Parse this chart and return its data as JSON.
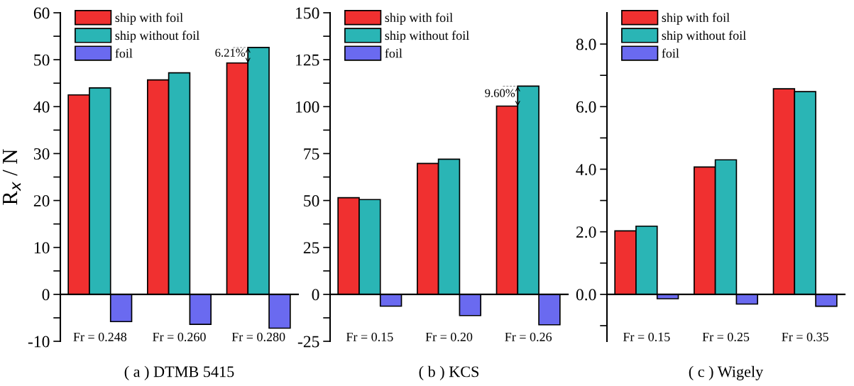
{
  "chart_data": [
    {
      "type": "bar",
      "xlabel": "( a ) DTMB 5415",
      "ylabel": "R$_{x}$ / N",
      "categories": [
        "Fr = 0.248",
        "Fr = 0.260",
        "Fr = 0.280"
      ],
      "series": [
        {
          "name": "ship with foil",
          "color": "#f03030",
          "values": [
            42.5,
            45.7,
            49.3
          ]
        },
        {
          "name": "ship without foil",
          "color": "#2ab5b5",
          "values": [
            44.0,
            47.2,
            52.6
          ]
        },
        {
          "name": "foil",
          "color": "#6a6af0",
          "values": [
            -5.8,
            -6.4,
            -7.2
          ]
        }
      ],
      "ylim": [
        -10,
        60
      ],
      "yticks": [
        -10,
        {
          "value": -5,
          "label": null
        },
        0,
        {
          "value": 5,
          "label": null
        },
        10,
        {
          "value": 15,
          "label": null
        },
        20,
        {
          "value": 25,
          "label": null
        },
        30,
        {
          "value": 35,
          "label": null
        },
        40,
        {
          "value": 45,
          "label": null
        },
        50,
        {
          "value": 55,
          "label": null
        },
        60
      ],
      "annotations": [
        "6.21%"
      ],
      "legend": "top left"
    },
    {
      "type": "bar",
      "xlabel": "( b ) KCS",
      "categories": [
        "Fr = 0.15",
        "Fr = 0.20",
        "Fr = 0.26"
      ],
      "series": [
        {
          "name": "ship with foil",
          "color": "#f03030",
          "values": [
            51.5,
            69.7,
            100.3
          ]
        },
        {
          "name": "ship without foil",
          "color": "#2ab5b5",
          "values": [
            50.5,
            72.0,
            110.9
          ]
        },
        {
          "name": "foil",
          "color": "#6a6af0",
          "values": [
            -6.3,
            -11.3,
            -16.2
          ]
        }
      ],
      "ylim": [
        -25,
        150
      ],
      "yticks": [
        -25,
        {
          "value": -12.5,
          "label": null
        },
        0,
        {
          "value": 12.5,
          "label": null
        },
        25,
        {
          "value": 37.5,
          "label": null
        },
        50,
        {
          "value": 62.5,
          "label": null
        },
        75,
        {
          "value": 87.5,
          "label": null
        },
        100,
        {
          "value": 112.5,
          "label": null
        },
        125,
        {
          "value": 137.5,
          "label": null
        },
        150
      ],
      "annotations": [
        "9.60%"
      ],
      "legend": "top left"
    },
    {
      "type": "bar",
      "xlabel": "( c ) Wigely",
      "categories": [
        "Fr = 0.15",
        "Fr = 0.25",
        "Fr = 0.35"
      ],
      "series": [
        {
          "name": "ship with foil",
          "color": "#f03030",
          "values": [
            2.03,
            4.07,
            6.57
          ]
        },
        {
          "name": "ship without foil",
          "color": "#2ab5b5",
          "values": [
            2.18,
            4.3,
            6.48
          ]
        },
        {
          "name": "foil",
          "color": "#6a6af0",
          "values": [
            -0.14,
            -0.31,
            -0.38
          ]
        }
      ],
      "ylim": [
        -1.5,
        9
      ],
      "yticks": [
        {
          "value": -1,
          "label": null
        },
        {
          "value": 0,
          "label": "0.0"
        },
        {
          "value": 1,
          "label": null
        },
        {
          "value": 2,
          "label": "2.0"
        },
        {
          "value": 3,
          "label": null
        },
        {
          "value": 4,
          "label": "4.0"
        },
        {
          "value": 5,
          "label": null
        },
        {
          "value": 6,
          "label": "6.0"
        },
        {
          "value": 7,
          "label": null
        },
        {
          "value": 8,
          "label": "8.0"
        }
      ],
      "legend": "top left"
    }
  ]
}
